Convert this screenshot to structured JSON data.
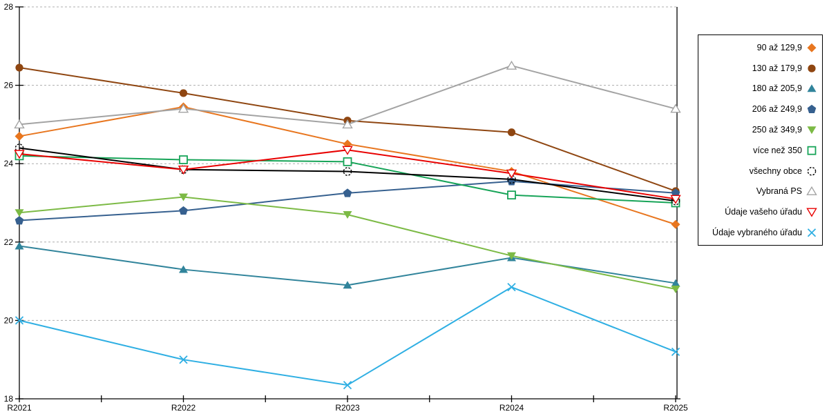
{
  "chart_data": {
    "type": "line",
    "categories": [
      "R2021",
      "R2022",
      "R2023",
      "R2024",
      "R2025"
    ],
    "series": [
      {
        "name": "90 až 129,9",
        "color": "#E8761F",
        "marker": "diamond",
        "values": [
          24.7,
          25.45,
          24.5,
          23.8,
          22.45
        ]
      },
      {
        "name": "130 až 179,9",
        "color": "#8F4611",
        "marker": "circle",
        "values": [
          26.45,
          25.8,
          25.1,
          24.8,
          23.3
        ]
      },
      {
        "name": "180 až 205,9",
        "color": "#31849B",
        "marker": "triangle-up",
        "values": [
          21.9,
          21.3,
          20.9,
          21.6,
          20.95
        ]
      },
      {
        "name": "206 až 249,9",
        "color": "#36608F",
        "marker": "pentagon",
        "values": [
          22.55,
          22.8,
          23.25,
          23.55,
          23.25
        ]
      },
      {
        "name": "250 až 349,9",
        "color": "#7CBA45",
        "marker": "triangle-down",
        "values": [
          22.75,
          23.15,
          22.7,
          21.65,
          20.8
        ]
      },
      {
        "name": "více než 350",
        "color": "#17A458",
        "marker": "square-open",
        "values": [
          24.2,
          24.1,
          24.05,
          23.2,
          23.0
        ]
      },
      {
        "name": "všechny obce",
        "color": "#000000",
        "marker": "circle-dashed",
        "values": [
          24.4,
          23.85,
          23.8,
          23.6,
          23.05
        ]
      },
      {
        "name": "Vybraná PS",
        "color": "#A3A3A3",
        "marker": "triangle-up-open",
        "values": [
          25.0,
          25.4,
          25.0,
          26.5,
          25.4
        ]
      },
      {
        "name": "Údaje vašeho úřadu",
        "color": "#E80000",
        "marker": "triangle-down-open",
        "values": [
          24.25,
          23.85,
          24.35,
          23.75,
          23.1
        ]
      },
      {
        "name": "Údaje vybraného úřadu",
        "color": "#2FAFE3",
        "marker": "x-cross",
        "values": [
          20.0,
          19.0,
          18.35,
          20.85,
          19.2
        ]
      }
    ],
    "title": "",
    "xlabel": "",
    "ylabel": "",
    "ylim": [
      18,
      28
    ],
    "ytick_labels": [
      "18",
      "20",
      "22",
      "24",
      "26",
      "28"
    ],
    "grid": "horizontal-dashed",
    "grid_color": "#ACACAC",
    "axis_color": "#000000",
    "legend_position": "right",
    "minor_x_ticks_between_categories": true
  }
}
